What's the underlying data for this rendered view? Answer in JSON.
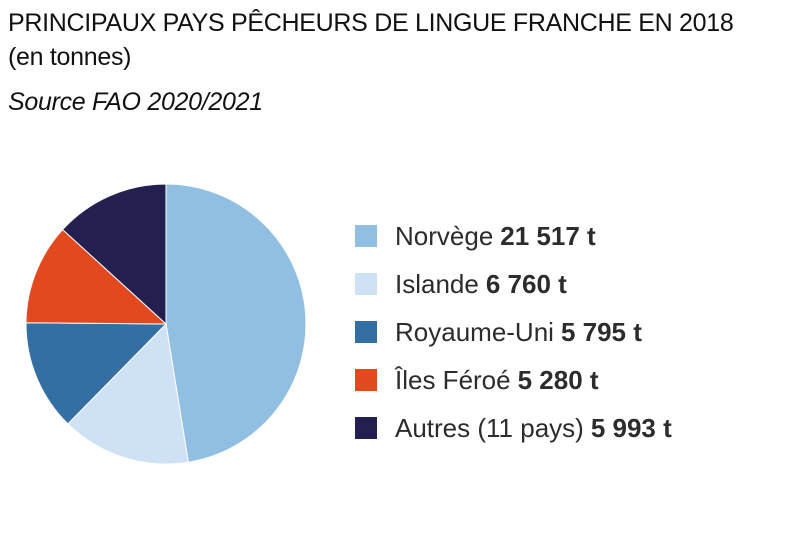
{
  "title": "PRINCIPAUX PAYS PÊCHEURS DE LINGUE FRANCHE EN 2018 (en tonnes)",
  "subtitle": "Source FAO 2020/2021",
  "chart_data": {
    "type": "pie",
    "title": "PRINCIPAUX PAYS PÊCHEURS DE LINGUE FRANCHE EN 2018 (en tonnes)",
    "subtitle": "Source FAO 2020/2021",
    "unit": "t",
    "legend_position": "right",
    "slices": [
      {
        "label": "Norvège",
        "value": 21517,
        "display": "21 517 t",
        "color": "#91bfe2"
      },
      {
        "label": "Islande",
        "value": 6760,
        "display": "6 760 t",
        "color": "#cfe1f4"
      },
      {
        "label": "Royaume-Uni",
        "value": 5795,
        "display": "5 795 t",
        "color": "#336fa2"
      },
      {
        "label": "Îles Féroé",
        "value": 5280,
        "display": "5 280 t",
        "color": "#e2491f"
      },
      {
        "label": "Autres (11 pays)",
        "value": 5993,
        "display": "5 993 t",
        "color": "#231f50"
      }
    ]
  }
}
